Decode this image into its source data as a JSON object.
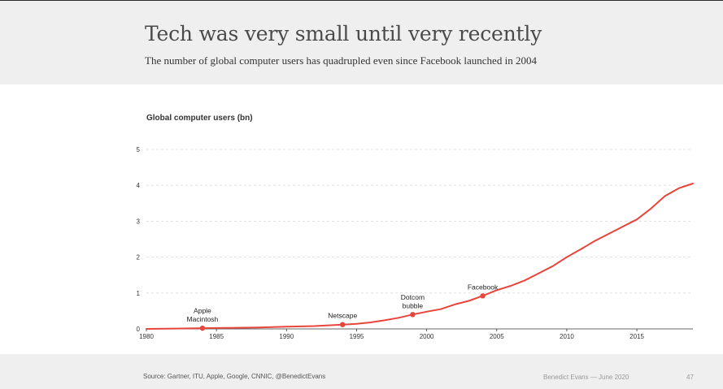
{
  "slide": {
    "title": "Tech was very small until very recently",
    "subtitle": "The number of global computer users has quadrupled even since Facebook launched in 2004"
  },
  "footer": {
    "source": "Source: Gartner, ITU, Apple, Google, CNNIC, @BenedictEvans",
    "author": "Benedict Evans — June 2020",
    "page_number": "47"
  },
  "colors": {
    "line": "#e8453c",
    "header_bg": "#efefef",
    "grid": "#d9d9d9"
  },
  "chart_data": {
    "type": "line",
    "title": "Global computer users (bn)",
    "xlim": [
      1980,
      2019
    ],
    "ylim": [
      0,
      5
    ],
    "x_ticks": [
      1980,
      1985,
      1990,
      1995,
      2000,
      2005,
      2010,
      2015
    ],
    "y_ticks": [
      0,
      1,
      2,
      3,
      4,
      5
    ],
    "grid": "horizontal dashed",
    "series": [
      {
        "x": [
          1980,
          1982,
          1984,
          1986,
          1988,
          1990,
          1992,
          1994,
          1995,
          1996,
          1997,
          1998,
          1999,
          2000,
          2001,
          2002,
          2003,
          2004,
          2005,
          2006,
          2007,
          2008,
          2009,
          2010,
          2011,
          2012,
          2013,
          2014,
          2015,
          2016,
          2017,
          2018,
          2019
        ],
        "y": [
          0.0,
          0.01,
          0.02,
          0.03,
          0.04,
          0.06,
          0.08,
          0.12,
          0.14,
          0.18,
          0.24,
          0.31,
          0.4,
          0.48,
          0.55,
          0.68,
          0.78,
          0.92,
          1.08,
          1.2,
          1.35,
          1.55,
          1.75,
          2.0,
          2.22,
          2.45,
          2.65,
          2.85,
          3.05,
          3.35,
          3.7,
          3.92,
          4.05
        ]
      }
    ],
    "annotations": [
      {
        "x": 1984,
        "y": 0.02,
        "lines": [
          "Apple",
          "Macintosh"
        ]
      },
      {
        "x": 1994,
        "y": 0.12,
        "lines": [
          "Netscape"
        ]
      },
      {
        "x": 1999,
        "y": 0.4,
        "lines": [
          "Dotcom",
          "bubble"
        ]
      },
      {
        "x": 2004,
        "y": 0.92,
        "lines": [
          "Facebook"
        ]
      }
    ]
  }
}
